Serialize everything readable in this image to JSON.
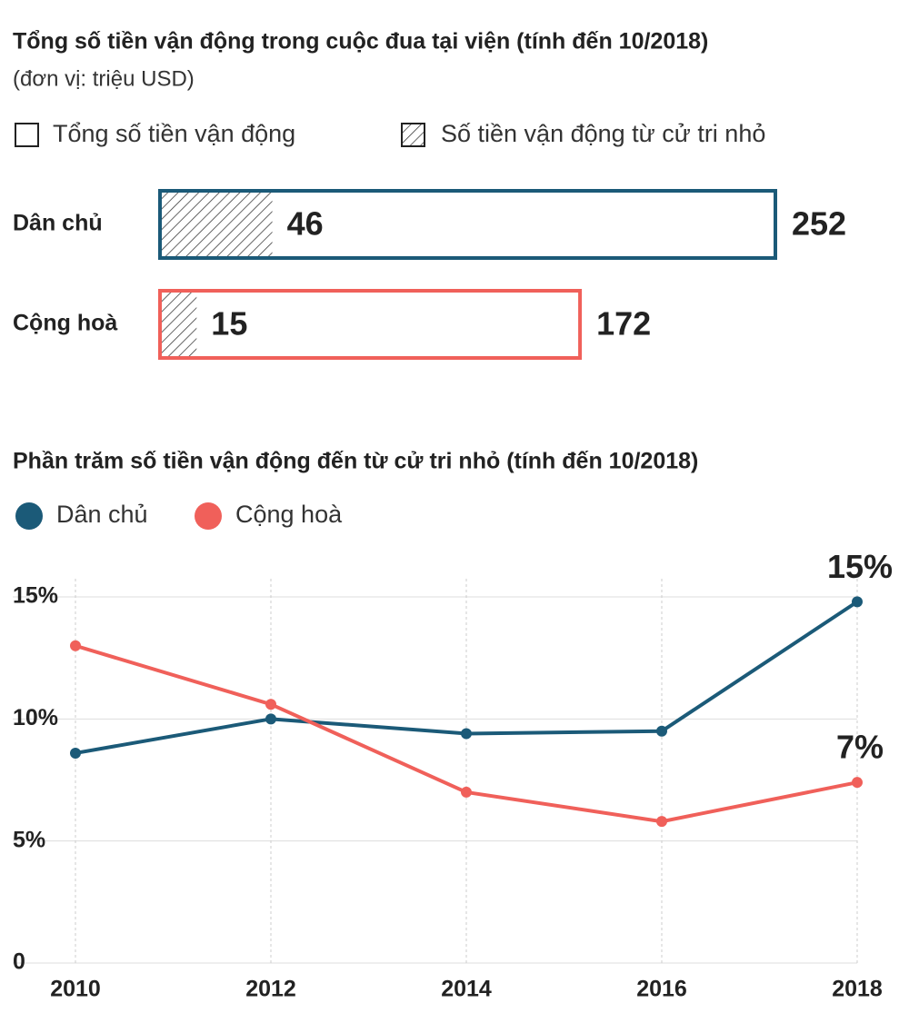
{
  "chart_data": [
    {
      "type": "bar",
      "title": "Tổng số tiền vận động trong cuộc đua tại viện (tính đến 10/2018)",
      "subtitle": "(đơn vị: triệu USD)",
      "categories": [
        "Dân chủ",
        "Cộng hoà"
      ],
      "colors": [
        "#1b5a78",
        "#f0605a"
      ],
      "series": [
        {
          "name": "Tổng số tiền vận động",
          "values": [
            252,
            172
          ]
        },
        {
          "name": "Số tiền vận động từ cử tri nhỏ",
          "values": [
            46,
            15
          ]
        }
      ]
    },
    {
      "type": "line",
      "title": "Phần trăm số tiền vận động đến từ cử tri nhỏ (tính đến 10/2018)",
      "x": [
        2010,
        2012,
        2014,
        2016,
        2018
      ],
      "xlim": [
        2010,
        2018
      ],
      "xticks": [
        2010,
        2012,
        2014,
        2016,
        2018
      ],
      "ylim": [
        0,
        15
      ],
      "yticks": [
        0,
        {
          "value": 5,
          "label": "5%"
        },
        {
          "value": 10,
          "label": "10%"
        },
        {
          "value": 15,
          "label": "15%"
        }
      ],
      "grid": true,
      "series": [
        {
          "name": "Dân chủ",
          "color": "#1b5a78",
          "values": [
            8.6,
            10,
            9.4,
            9.5,
            14.8
          ],
          "value_labels": [
            null,
            null,
            null,
            null,
            "15%"
          ]
        },
        {
          "name": "Cộng hoà",
          "color": "#f0605a",
          "values": [
            13,
            10.6,
            7,
            5.8,
            7.4
          ],
          "value_labels": [
            null,
            null,
            null,
            null,
            "7%"
          ]
        }
      ]
    }
  ]
}
